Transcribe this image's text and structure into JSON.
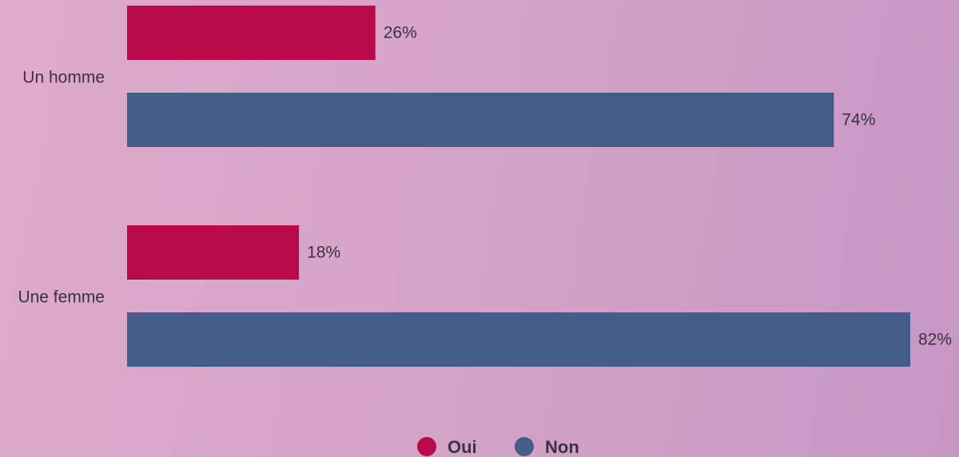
{
  "chart_data": {
    "type": "bar",
    "orientation": "horizontal",
    "categories": [
      "Un homme",
      "Une femme"
    ],
    "series": [
      {
        "name": "Oui",
        "color": "#b90a4a",
        "values": [
          26,
          18
        ],
        "value_labels": [
          "26%",
          "18%"
        ]
      },
      {
        "name": "Non",
        "color": "#435d88",
        "values": [
          74,
          82
        ],
        "value_labels": [
          "74%",
          "82%"
        ]
      }
    ]
  }
}
